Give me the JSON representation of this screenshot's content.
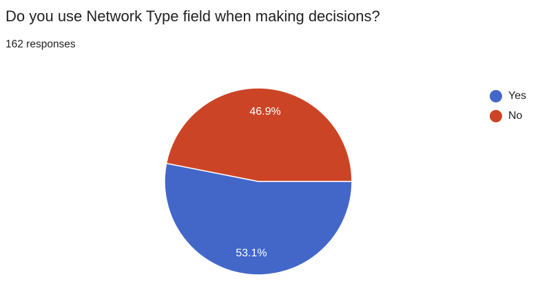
{
  "title": "Do you use Network Type field when making decisions?",
  "response_count": "162 responses",
  "colors": {
    "yes": "#4367c9",
    "no": "#cc4426",
    "slice_border": "#ffffff",
    "label_text": "#ffffff"
  },
  "chart_data": {
    "type": "pie",
    "title": "Do you use Network Type field when making decisions?",
    "subtitle": "162 responses",
    "slices": [
      {
        "name": "Yes",
        "value": 53.1,
        "label": "53.1%",
        "color": "#4367c9"
      },
      {
        "name": "No",
        "value": 46.9,
        "label": "46.9%",
        "color": "#cc4426"
      }
    ],
    "legend_position": "right",
    "legend": [
      "Yes",
      "No"
    ]
  }
}
